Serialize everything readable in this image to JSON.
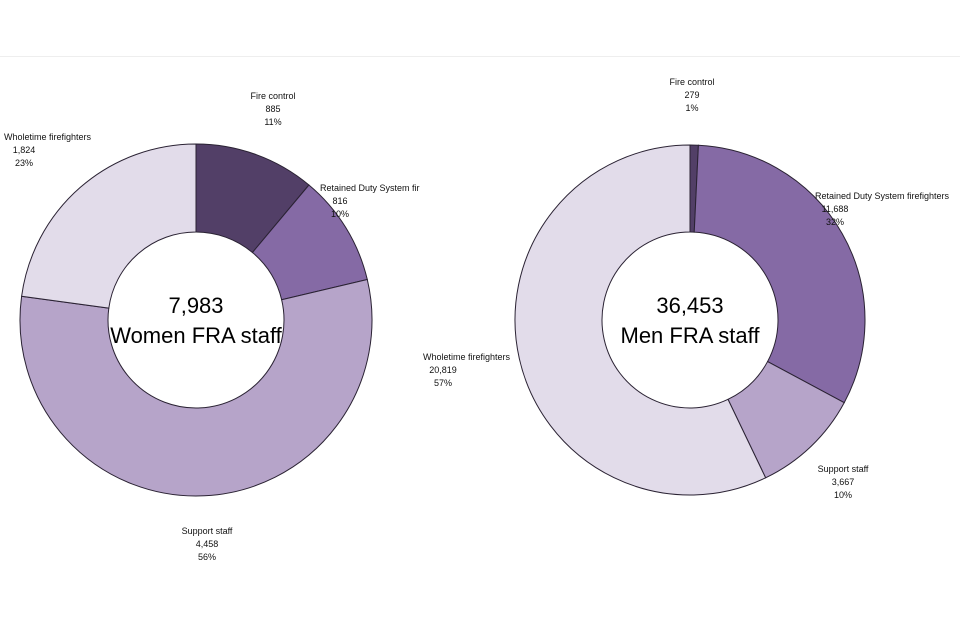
{
  "colors": {
    "Fire control": "#523f67",
    "Retained Duty System firefighters": "#856aa5",
    "Support staff": "#b6a4c9",
    "Wholetime firefighters": "#e2dcea",
    "stroke": "#2a2233"
  },
  "chart_data": [
    {
      "type": "pie",
      "variant": "donut",
      "center_total": "7,983",
      "center_caption": "Women FRA staff",
      "slices": [
        {
          "category": "Fire control",
          "label": "Fire control",
          "value": 885,
          "value_text": "885",
          "percent_text": "11%"
        },
        {
          "category": "Retained Duty System firefighters",
          "label": "Retained Duty System fir",
          "value": 816,
          "value_text": "816",
          "percent_text": "10%"
        },
        {
          "category": "Support staff",
          "label": "Support staff",
          "value": 4458,
          "value_text": "4,458",
          "percent_text": "56%"
        },
        {
          "category": "Wholetime firefighters",
          "label": "Wholetime firefighters",
          "value": 1824,
          "value_text": "1,824",
          "percent_text": "23%"
        }
      ]
    },
    {
      "type": "pie",
      "variant": "donut",
      "center_total": "36,453",
      "center_caption": "Men FRA staff",
      "slices": [
        {
          "category": "Fire control",
          "label": "Fire control",
          "value": 279,
          "value_text": "279",
          "percent_text": "1%"
        },
        {
          "category": "Retained Duty System firefighters",
          "label": "Retained Duty System firefighters",
          "value": 11688,
          "value_text": "11,688",
          "percent_text": "32%"
        },
        {
          "category": "Support staff",
          "label": "Support staff",
          "value": 3667,
          "value_text": "3,667",
          "percent_text": "10%"
        },
        {
          "category": "Wholetime firefighters",
          "label": "Wholetime firefighters",
          "value": 20819,
          "value_text": "20,819",
          "percent_text": "57%"
        }
      ]
    }
  ]
}
